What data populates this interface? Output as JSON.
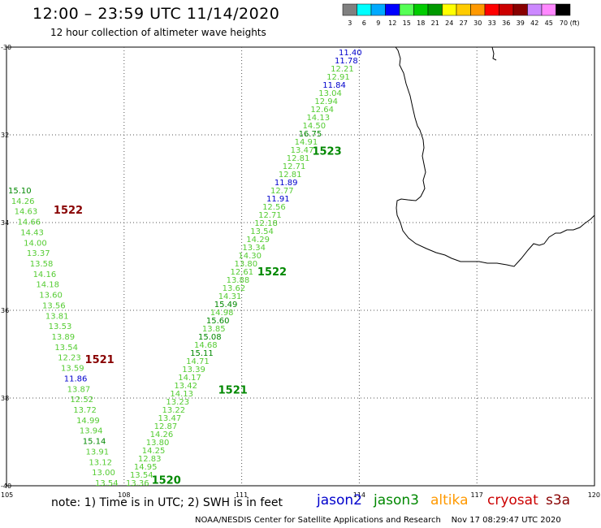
{
  "header": {
    "title": "12:00 – 23:59 UTC 11/14/2020",
    "subtitle": "12 hour collection of altimeter wave heights"
  },
  "legend": {
    "colors": [
      "#808080",
      "#00ffff",
      "#00aaff",
      "#0000ff",
      "#55ff55",
      "#00cc00",
      "#009900",
      "#ffff00",
      "#ffcc00",
      "#ff9900",
      "#ff0000",
      "#cc0000",
      "#880000",
      "#cc88ff",
      "#ff88ff",
      "#000000"
    ],
    "labels": [
      "3",
      "6",
      "9",
      "12",
      "15",
      "18",
      "21",
      "24",
      "27",
      "30",
      "33",
      "36",
      "39",
      "42",
      "45",
      "70 (ft)"
    ]
  },
  "axes": {
    "lat_labels": [
      "-30",
      "32",
      "34",
      "36",
      "38",
      "-40"
    ],
    "lon_labels": [
      "105",
      "108",
      "111",
      "114",
      "117",
      "120"
    ]
  },
  "colors": {
    "jason2": "#0000cc",
    "jason3": "#008800",
    "altika": "#ff9900",
    "cryosat": "#cc0000",
    "s3a": "#880000",
    "wave_light": "#55cc33",
    "wave_dark": "#008800",
    "wave_blue": "#0000cc"
  },
  "tracks": [
    {
      "name": "track-east",
      "time_labels": [
        {
          "text": "1523",
          "lat": -32.45,
          "lon": 112.8,
          "color": "#008800"
        },
        {
          "text": "1522",
          "lat": -35.2,
          "lon": 111.4,
          "color": "#008800"
        },
        {
          "text": "1521",
          "lat": -37.9,
          "lon": 110.4,
          "color": "#008800"
        },
        {
          "text": "1520",
          "lat": -39.95,
          "lon": 108.7,
          "color": "#008800"
        }
      ],
      "points": [
        {
          "v": "11.40",
          "c": "b"
        },
        {
          "v": "11.78",
          "c": "b"
        },
        {
          "v": "12.21",
          "c": "l"
        },
        {
          "v": "12.91",
          "c": "l"
        },
        {
          "v": "11.84",
          "c": "b"
        },
        {
          "v": "13.04",
          "c": "l"
        },
        {
          "v": "12.94",
          "c": "l"
        },
        {
          "v": "12.64",
          "c": "l"
        },
        {
          "v": "14.13",
          "c": "l"
        },
        {
          "v": "14.50",
          "c": "l"
        },
        {
          "v": "16.75",
          "c": "d"
        },
        {
          "v": "14.91",
          "c": "l"
        },
        {
          "v": "13.47",
          "c": "l"
        },
        {
          "v": "12.81",
          "c": "l"
        },
        {
          "v": "12.71",
          "c": "l"
        },
        {
          "v": "12.81",
          "c": "l"
        },
        {
          "v": "11.89",
          "c": "b"
        },
        {
          "v": "12.77",
          "c": "l"
        },
        {
          "v": "11.91",
          "c": "b"
        },
        {
          "v": "12.56",
          "c": "l"
        },
        {
          "v": "12.71",
          "c": "l"
        },
        {
          "v": "12.18",
          "c": "l"
        },
        {
          "v": "13.54",
          "c": "l"
        },
        {
          "v": "14.29",
          "c": "l"
        },
        {
          "v": "13.34",
          "c": "l"
        },
        {
          "v": "14.30",
          "c": "l"
        },
        {
          "v": "13.80",
          "c": "l"
        },
        {
          "v": "12.61",
          "c": "l"
        },
        {
          "v": "13.88",
          "c": "l"
        },
        {
          "v": "13.62",
          "c": "l"
        },
        {
          "v": "14.31",
          "c": "l"
        },
        {
          "v": "15.49",
          "c": "d"
        },
        {
          "v": "14.98",
          "c": "l"
        },
        {
          "v": "15.60",
          "c": "d"
        },
        {
          "v": "13.85",
          "c": "l"
        },
        {
          "v": "15.08",
          "c": "d"
        },
        {
          "v": "14.68",
          "c": "l"
        },
        {
          "v": "15.11",
          "c": "d"
        },
        {
          "v": "14.71",
          "c": "l"
        },
        {
          "v": "13.39",
          "c": "l"
        },
        {
          "v": "14.17",
          "c": "l"
        },
        {
          "v": "13.42",
          "c": "l"
        },
        {
          "v": "14.13",
          "c": "l"
        },
        {
          "v": "13.23",
          "c": "l"
        },
        {
          "v": "13.22",
          "c": "l"
        },
        {
          "v": "13.47",
          "c": "l"
        },
        {
          "v": "12.87",
          "c": "l"
        },
        {
          "v": "14.26",
          "c": "l"
        },
        {
          "v": "13.80",
          "c": "l"
        },
        {
          "v": "14.25",
          "c": "l"
        },
        {
          "v": "12.83",
          "c": "l"
        },
        {
          "v": "14.95",
          "c": "l"
        },
        {
          "v": "13.54",
          "c": "l"
        },
        {
          "v": "13.36",
          "c": "l"
        }
      ]
    },
    {
      "name": "track-west",
      "time_labels": [
        {
          "text": "1522",
          "lat": -33.8,
          "lon": 106.2,
          "color": "#880000"
        },
        {
          "text": "1521",
          "lat": -37.2,
          "lon": 107.0,
          "color": "#880000"
        }
      ],
      "points": [
        {
          "v": "15.10",
          "c": "d"
        },
        {
          "v": "14.26",
          "c": "l"
        },
        {
          "v": "14.63",
          "c": "l"
        },
        {
          "v": "14.66",
          "c": "l"
        },
        {
          "v": "14.43",
          "c": "l"
        },
        {
          "v": "14.00",
          "c": "l"
        },
        {
          "v": "13.37",
          "c": "l"
        },
        {
          "v": "13.58",
          "c": "l"
        },
        {
          "v": "14.16",
          "c": "l"
        },
        {
          "v": "14.18",
          "c": "l"
        },
        {
          "v": "13.60",
          "c": "l"
        },
        {
          "v": "13.56",
          "c": "l"
        },
        {
          "v": "13.81",
          "c": "l"
        },
        {
          "v": "13.53",
          "c": "l"
        },
        {
          "v": "13.89",
          "c": "l"
        },
        {
          "v": "13.54",
          "c": "l"
        },
        {
          "v": "12.23",
          "c": "l"
        },
        {
          "v": "13.59",
          "c": "l"
        },
        {
          "v": "11.86",
          "c": "b"
        },
        {
          "v": "13.87",
          "c": "l"
        },
        {
          "v": "12.52",
          "c": "l"
        },
        {
          "v": "13.72",
          "c": "l"
        },
        {
          "v": "14.99",
          "c": "l"
        },
        {
          "v": "13.94",
          "c": "l"
        },
        {
          "v": "15.14",
          "c": "d"
        },
        {
          "v": "13.91",
          "c": "l"
        },
        {
          "v": "13.12",
          "c": "l"
        },
        {
          "v": "13.00",
          "c": "l"
        },
        {
          "v": "13.54",
          "c": "l"
        }
      ]
    }
  ],
  "footer": {
    "note": "note: 1) Time is in UTC; 2) SWH is in feet",
    "satellites": [
      {
        "name": "jason2",
        "color": "#0000cc"
      },
      {
        "name": "jason3",
        "color": "#008800"
      },
      {
        "name": "altika",
        "color": "#ff9900"
      },
      {
        "name": "cryosat",
        "color": "#cc0000"
      },
      {
        "name": "s3a",
        "color": "#880000"
      }
    ],
    "credit": "NOAA/NESDIS Center for Satellite Applications and Research",
    "timestamp": "Nov 17 08:29:47 UTC 2020"
  }
}
